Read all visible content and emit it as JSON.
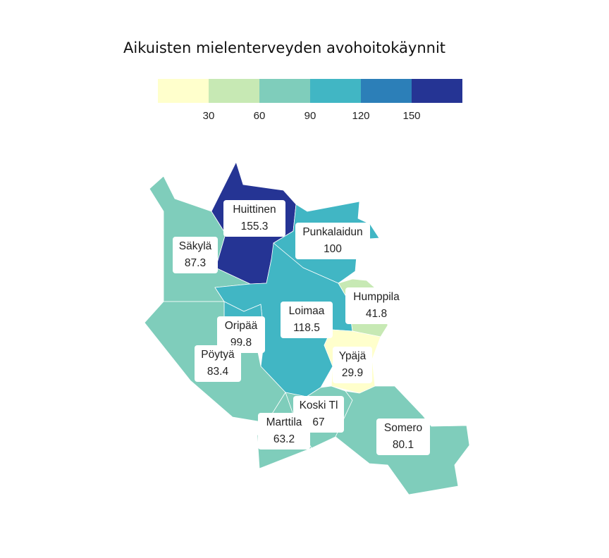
{
  "title": "Aikuisten mielenterveyden avohoitokäynnit",
  "legend": {
    "colors": [
      "#ffffcc",
      "#c7e9b4",
      "#7fcdbb",
      "#41b6c4",
      "#2c7fb8",
      "#253494"
    ],
    "ticks": [
      "30",
      "60",
      "90",
      "120",
      "150"
    ]
  },
  "regions": [
    {
      "name": "Huittinen",
      "value": "155.3",
      "color": "#253494"
    },
    {
      "name": "Punkalaidun",
      "value": "100",
      "color": "#41b6c4"
    },
    {
      "name": "Säkylä",
      "value": "87.3",
      "color": "#7fcdbb"
    },
    {
      "name": "Humppila",
      "value": "41.8",
      "color": "#c7e9b4"
    },
    {
      "name": "Loimaa",
      "value": "118.5",
      "color": "#41b6c4"
    },
    {
      "name": "Oripää",
      "value": "99.8",
      "color": "#41b6c4"
    },
    {
      "name": "Ypäjä",
      "value": "29.9",
      "color": "#ffffcc"
    },
    {
      "name": "Pöytyä",
      "value": "83.4",
      "color": "#7fcdbb"
    },
    {
      "name": "Koski Tl",
      "value": "67",
      "color": "#7fcdbb"
    },
    {
      "name": "Marttila",
      "value": "63.2",
      "color": "#7fcdbb"
    },
    {
      "name": "Somero",
      "value": "80.1",
      "color": "#7fcdbb"
    }
  ]
}
